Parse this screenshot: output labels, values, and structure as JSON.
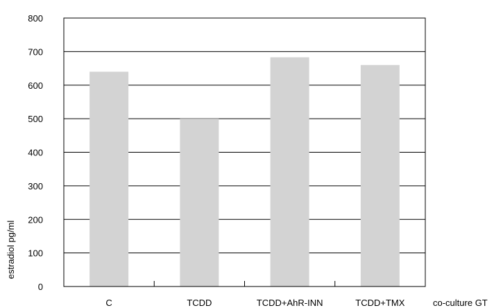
{
  "chart_data": {
    "type": "bar",
    "categories": [
      "C",
      "TCDD",
      "TCDD+AhR-INN",
      "TCDD+TMX"
    ],
    "values": [
      640,
      500,
      683,
      660
    ],
    "title": "",
    "xlabel": "co-culture GT",
    "ylabel": "estradiol pg/ml",
    "ylim": [
      0,
      800
    ],
    "yticks": [
      0,
      100,
      200,
      300,
      400,
      500,
      600,
      700,
      800
    ],
    "grid": true,
    "legend": "none",
    "colors": {
      "bar": "#d3d3d3",
      "grid": "#000000",
      "axis": "#000000",
      "background": "#ffffff"
    }
  }
}
